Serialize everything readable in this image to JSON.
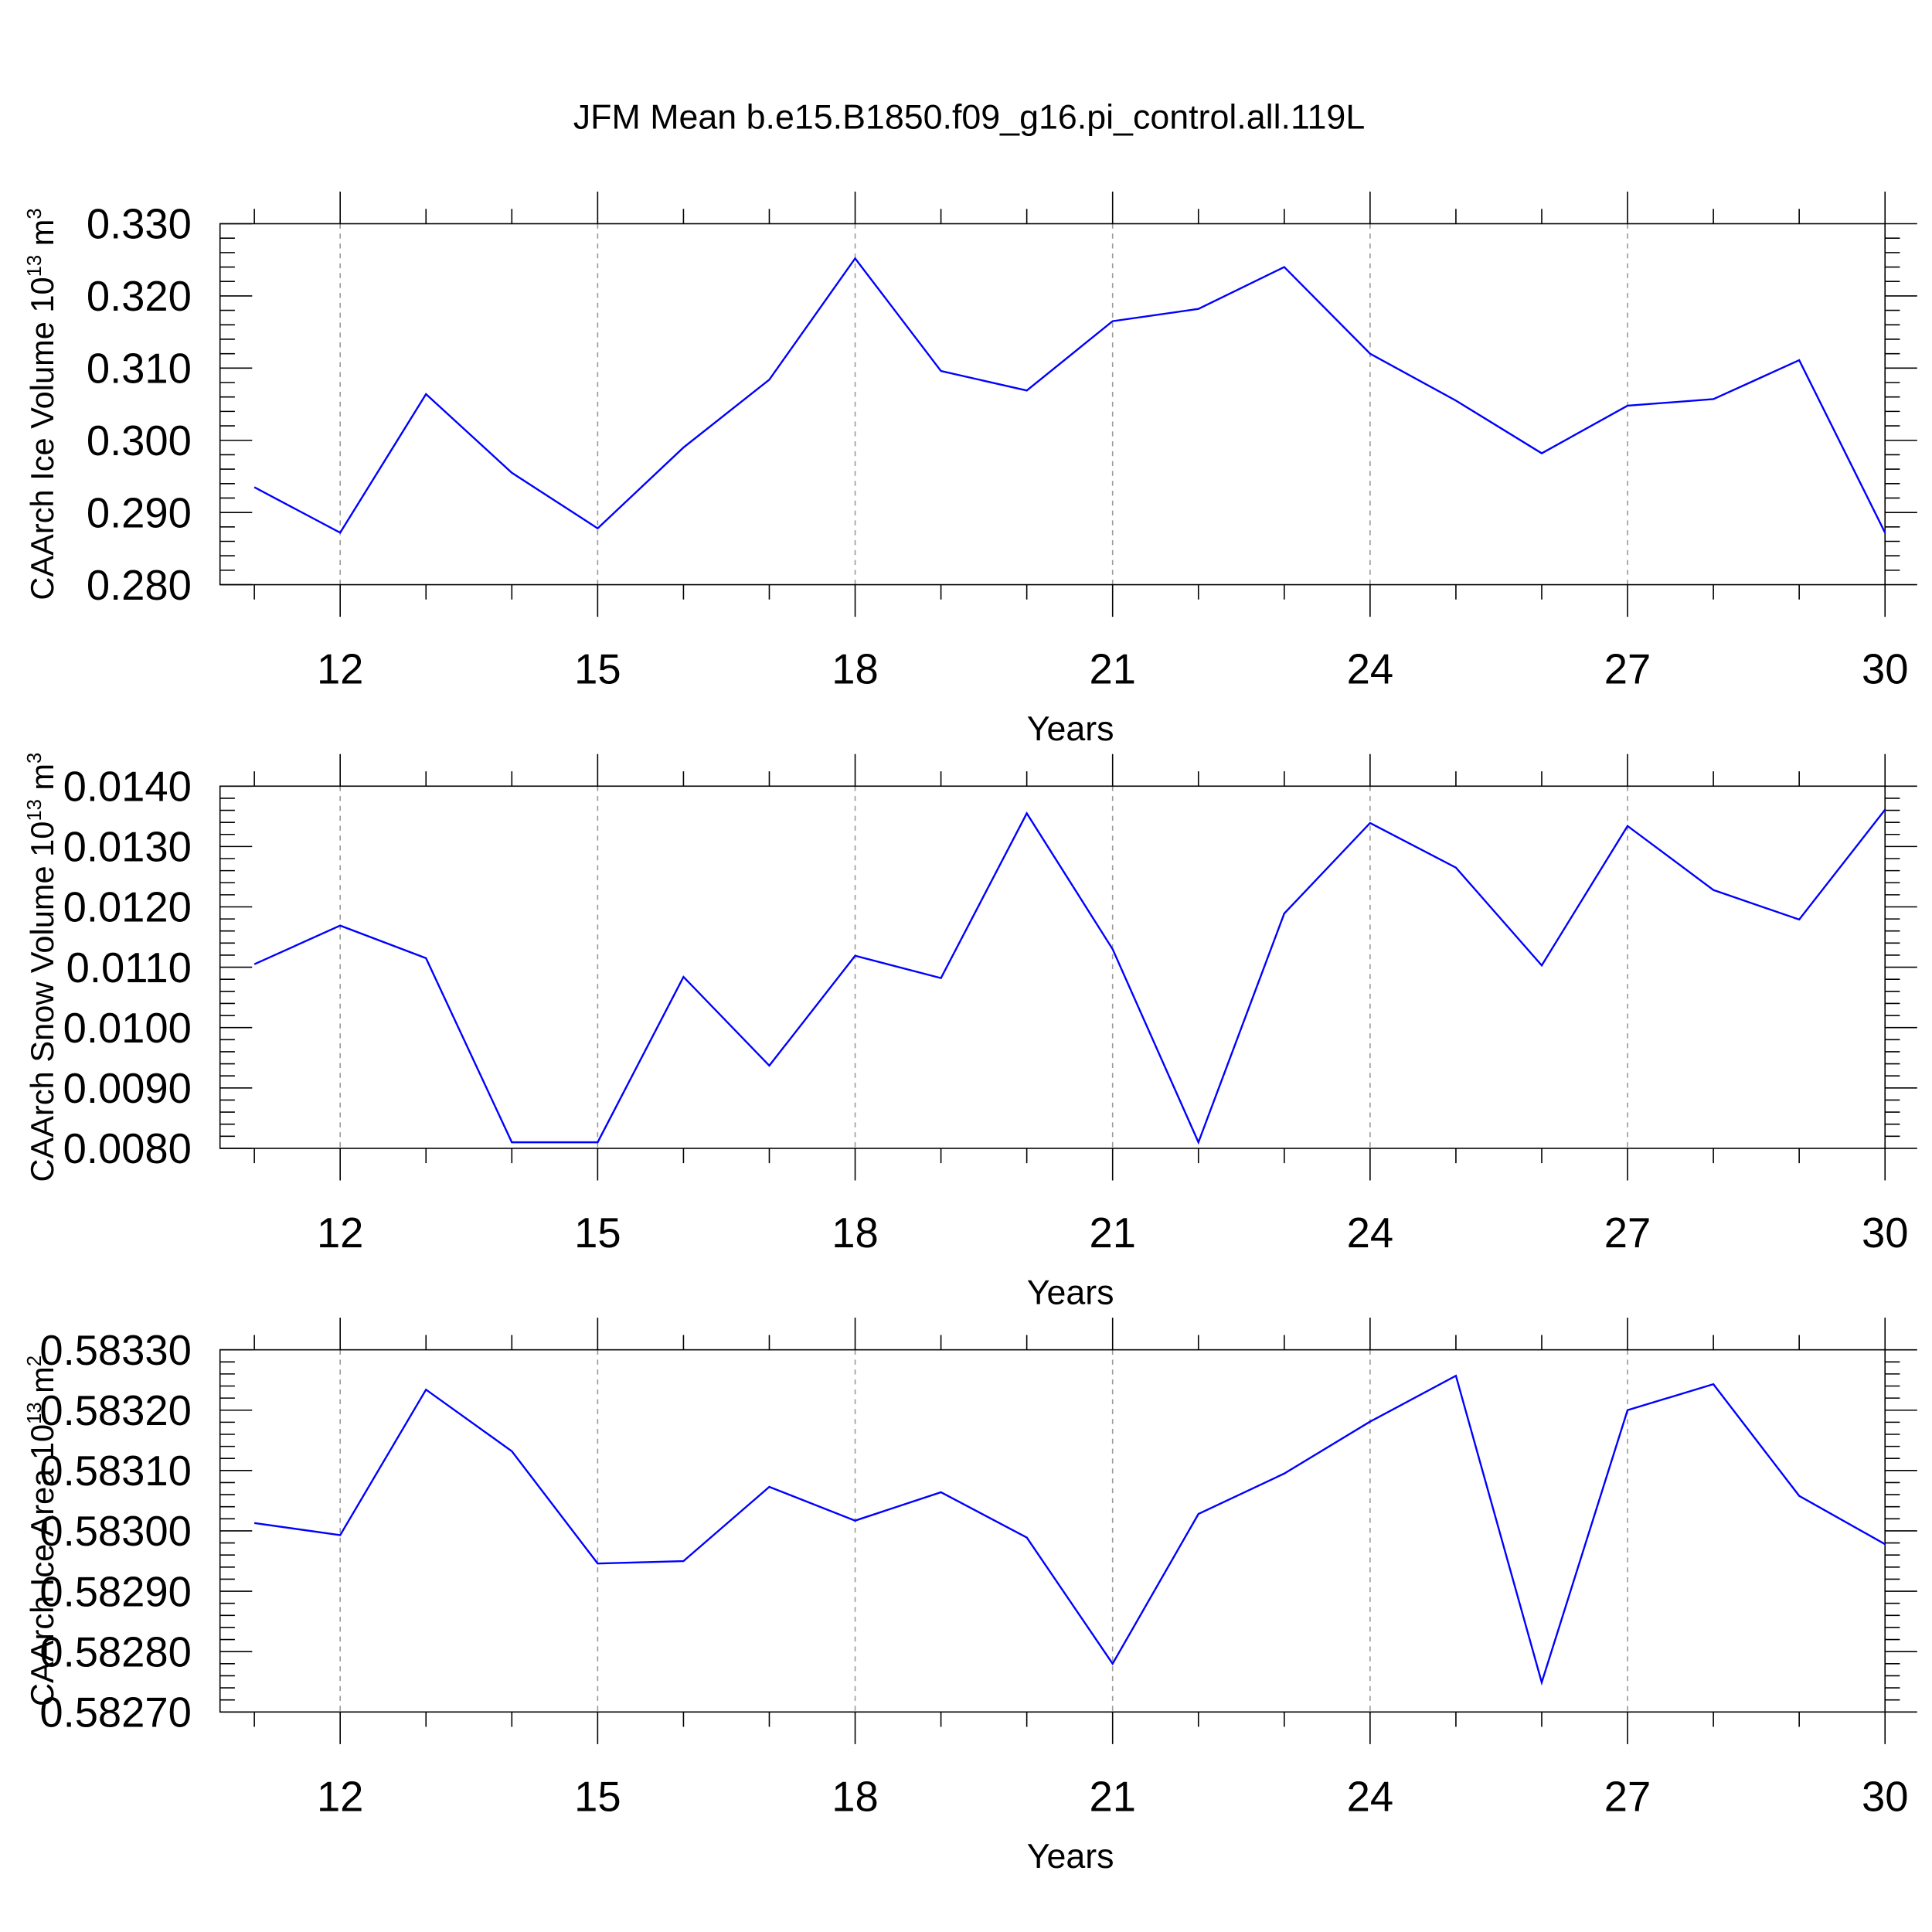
{
  "title": "JFM Mean b.e15.B1850.f09_g16.pi_control.all.119L",
  "line_color": "#0000ff",
  "chart_data": [
    {
      "type": "line",
      "ylabel": "CAArch Ice Volume 10",
      "ylabel_exp": "13",
      "ylabel_unit": " m",
      "ylabel_unit_exp": "3",
      "xlabel": "Years",
      "xlim": [
        10.6,
        30
      ],
      "ylim": [
        0.28,
        0.33
      ],
      "xticks": [
        12,
        15,
        18,
        21,
        24,
        27,
        30
      ],
      "yticks": [
        "0.330",
        "0.320",
        "0.310",
        "0.300",
        "0.290",
        "0.280"
      ],
      "x": [
        11,
        12,
        13,
        14,
        15,
        16,
        17,
        18,
        19,
        20,
        21,
        22,
        23,
        24,
        25,
        26,
        27,
        28,
        29,
        30
      ],
      "values": [
        0.2935,
        0.2872,
        0.3064,
        0.2955,
        0.2878,
        0.299,
        0.3084,
        0.3252,
        0.3096,
        0.3069,
        0.3165,
        0.3182,
        0.324,
        0.312,
        0.3055,
        0.2982,
        0.3048,
        0.3057,
        0.3111,
        0.2872
      ]
    },
    {
      "type": "line",
      "ylabel": "CAArch Snow Volume 10",
      "ylabel_exp": "13",
      "ylabel_unit": " m",
      "ylabel_unit_exp": "3",
      "xlabel": "Years",
      "xlim": [
        10.6,
        30
      ],
      "ylim": [
        0.008,
        0.014
      ],
      "xticks": [
        12,
        15,
        18,
        21,
        24,
        27,
        30
      ],
      "yticks": [
        "0.0140",
        "0.0130",
        "0.0120",
        "0.0110",
        "0.0100",
        "0.0090",
        "0.0080"
      ],
      "x": [
        11,
        12,
        13,
        14,
        15,
        16,
        17,
        18,
        19,
        20,
        21,
        22,
        23,
        24,
        25,
        26,
        27,
        28,
        29,
        30
      ],
      "values": [
        0.01105,
        0.01169,
        0.01115,
        0.0081,
        0.0081,
        0.01084,
        0.00937,
        0.01119,
        0.01082,
        0.01355,
        0.0113,
        0.0081,
        0.01189,
        0.01339,
        0.01265,
        0.01103,
        0.01334,
        0.01228,
        0.01179,
        0.01361
      ]
    },
    {
      "type": "line",
      "ylabel": "CAArch Ice Area 10",
      "ylabel_exp": "13",
      "ylabel_unit": " m",
      "ylabel_unit_exp": "2",
      "xlabel": "Years",
      "xlim": [
        10.6,
        30
      ],
      "ylim": [
        0.5827,
        0.5833
      ],
      "xticks": [
        12,
        15,
        18,
        21,
        24,
        27,
        30
      ],
      "yticks": [
        "0.58330",
        "0.58320",
        "0.58310",
        "0.58300",
        "0.58290",
        "0.58280",
        "0.58270"
      ],
      "x": [
        11,
        12,
        13,
        14,
        15,
        16,
        17,
        18,
        19,
        20,
        21,
        22,
        23,
        24,
        25,
        26,
        27,
        28,
        29,
        30
      ],
      "values": [
        0.583013,
        0.582993,
        0.583234,
        0.583132,
        0.582946,
        0.58295,
        0.583073,
        0.583017,
        0.583064,
        0.582989,
        0.58278,
        0.583028,
        0.583095,
        0.583181,
        0.583257,
        0.582749,
        0.5832,
        0.583243,
        0.583058,
        0.582978
      ]
    }
  ]
}
